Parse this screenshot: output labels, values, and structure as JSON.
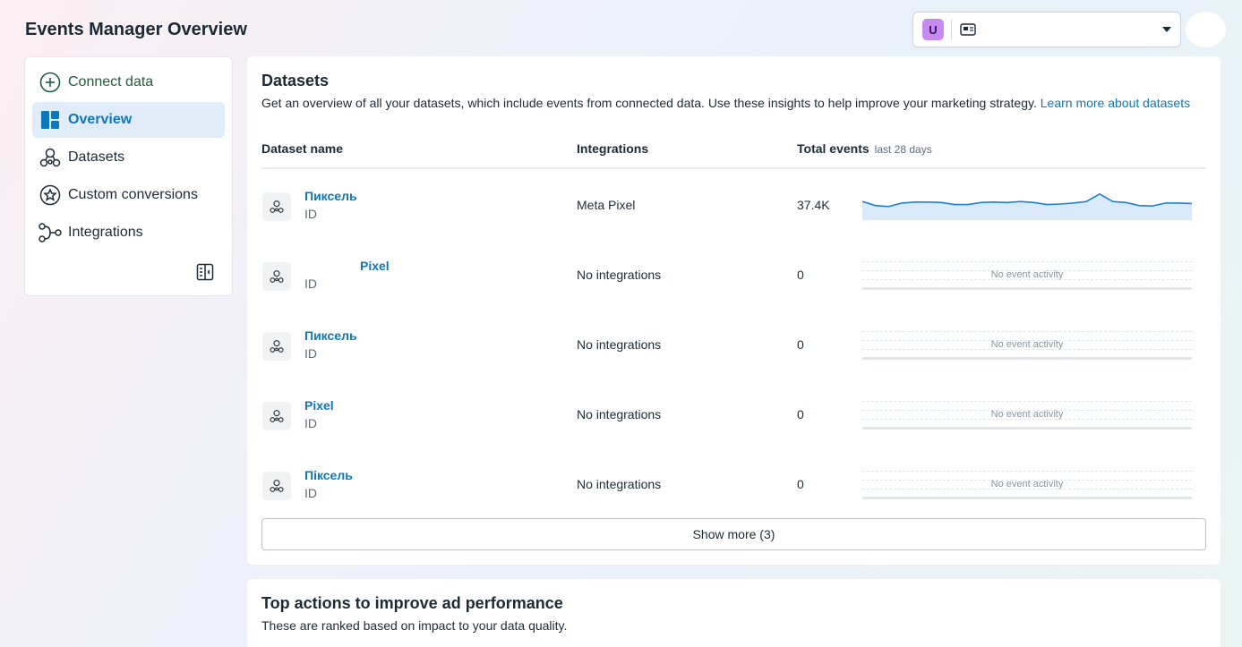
{
  "header": {
    "title": "Events Manager Overview",
    "account_initial": "U"
  },
  "sidebar": {
    "items": [
      {
        "label": "Connect data"
      },
      {
        "label": "Overview"
      },
      {
        "label": "Datasets"
      },
      {
        "label": "Custom conversions"
      },
      {
        "label": "Integrations"
      }
    ]
  },
  "datasets": {
    "title": "Datasets",
    "description": "Get an overview of all your datasets, which include events from connected data. Use these insights to help improve your marketing strategy.",
    "learn_more": "Learn more about datasets",
    "columns": {
      "name": "Dataset name",
      "integrations": "Integrations",
      "total_events": "Total events",
      "total_events_sub": "last 28 days"
    },
    "rows": [
      {
        "name": "Пиксель",
        "id_label": "ID",
        "integration": "Meta Pixel",
        "total": "37.4K",
        "activity": [
          30,
          22,
          20,
          27,
          29,
          29,
          28,
          24,
          24,
          28,
          29,
          28,
          30,
          28,
          24,
          25,
          27,
          30,
          45,
          30,
          28,
          22,
          21,
          27,
          27,
          26
        ]
      },
      {
        "name": "Pixel",
        "id_label": "ID",
        "integration": "No integrations",
        "total": "0",
        "no_activity": "No event activity"
      },
      {
        "name": "Пиксель",
        "id_label": "ID",
        "integration": "No integrations",
        "total": "0",
        "no_activity": "No event activity"
      },
      {
        "name": "Pixel",
        "id_label": "ID",
        "integration": "No integrations",
        "total": "0",
        "no_activity": "No event activity"
      },
      {
        "name": "Піксель",
        "id_label": "ID",
        "integration": "No integrations",
        "total": "0",
        "no_activity": "No event activity"
      }
    ],
    "show_more": "Show more (3)",
    "colors": {
      "link": "#0a78be",
      "sparkline": "#1a7fe0",
      "spark_fill": "#dbeafb"
    }
  },
  "top_actions": {
    "title": "Top actions to improve ad performance",
    "subtitle": "These are ranked based on impact to your data quality."
  }
}
